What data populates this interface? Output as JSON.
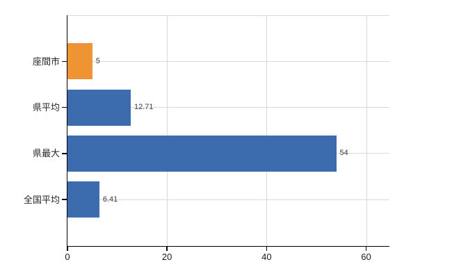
{
  "chart": {
    "background": "#ffffff",
    "axis_color": "#000000",
    "grid_color": "#d5dad5",
    "category_label_color": "#262626",
    "value_label_color": "#3a3a3a",
    "tick_label_color": "#1a1a1a",
    "accent_orange": "#ef9435",
    "accent_blue": "#3c6cae"
  },
  "chart_data": {
    "type": "bar",
    "orientation": "horizontal",
    "title": "",
    "xlabel": "",
    "ylabel": "",
    "categories": [
      "座間市",
      "県平均",
      "県最大",
      "全国平均"
    ],
    "values": [
      5,
      12.71,
      54,
      6.41
    ],
    "value_labels": [
      "5",
      "12.71",
      "54",
      "6.41"
    ],
    "bar_colors": [
      "#ef9435",
      "#3c6cae",
      "#3c6cae",
      "#3c6cae"
    ],
    "xlim": [
      0,
      60
    ],
    "xticks": [
      0,
      20,
      40,
      60
    ],
    "xtick_labels": [
      "0",
      "20",
      "40",
      "60"
    ],
    "grid": true,
    "legend": false
  }
}
